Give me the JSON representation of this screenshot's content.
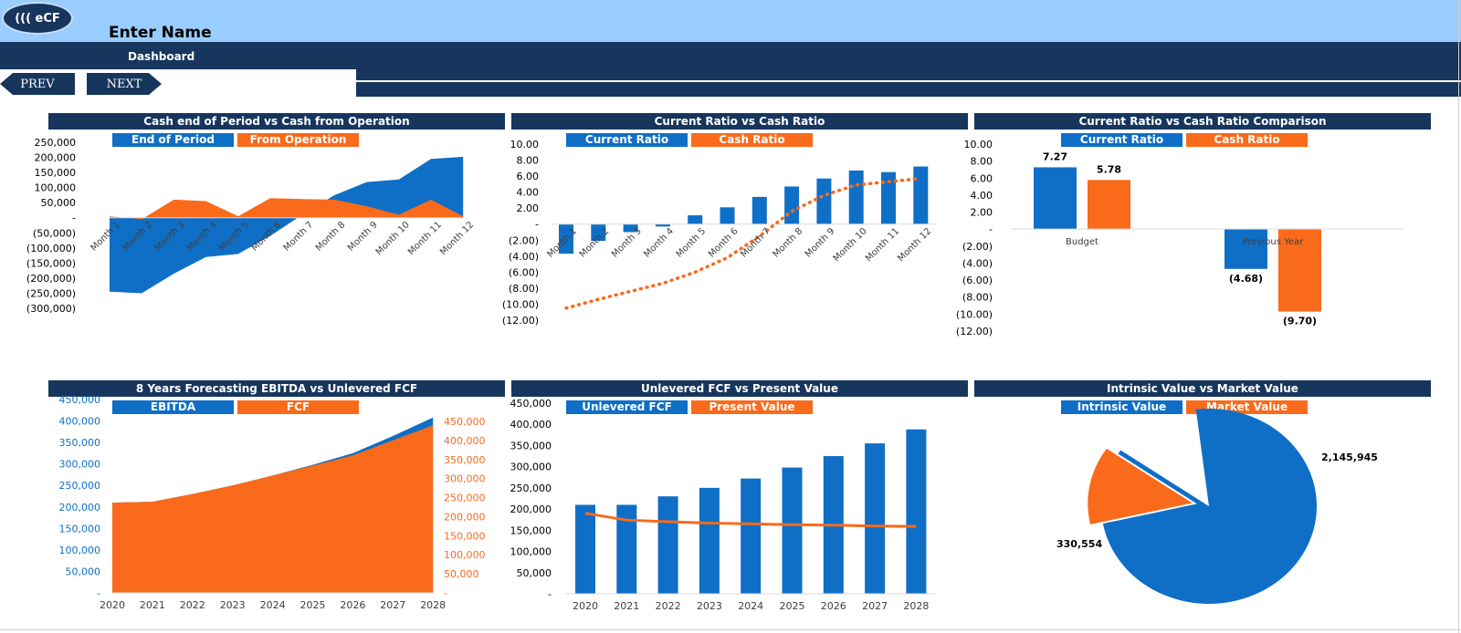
{
  "header": {
    "logo": "((( eCF",
    "title": "Enter Name"
  },
  "nav": {
    "tab": "Dashboard",
    "prev": "PREV",
    "next": "NEXT"
  },
  "colors": {
    "blue": "#0f6fc6",
    "orange": "#f96a1b",
    "navy": "#17365d"
  },
  "chart_data": [
    {
      "type": "area",
      "title": "Cash end of Period vs Cash from Operation",
      "legend": [
        "End of Period",
        "From Operation"
      ],
      "categories": [
        "Month 1",
        "Month 2",
        "Month 3",
        "Month 4",
        "Month 5",
        "Month 6",
        "Month 7",
        "Month 8",
        "Month 9",
        "Month 10",
        "Month 11",
        "Month 12"
      ],
      "yticks": [
        "250,000",
        "200,000",
        "150,000",
        "100,000",
        "50,000",
        "-",
        "(50,000)",
        "(100,000)",
        "(150,000)",
        "(200,000)",
        "(250,000)",
        "(300,000)"
      ],
      "ylim": [
        -300000,
        250000
      ],
      "series": [
        {
          "name": "End of Period",
          "values": [
            -245000,
            -250000,
            -185000,
            -130000,
            -120000,
            -60000,
            10000,
            75000,
            118000,
            127000,
            195000,
            202000
          ]
        },
        {
          "name": "From Operation",
          "values": [
            5000,
            -5000,
            60000,
            55000,
            5000,
            65000,
            62000,
            60000,
            38000,
            10000,
            60000,
            5000
          ]
        }
      ]
    },
    {
      "type": "bar",
      "title": "Current Ratio vs Cash Ratio",
      "legend": [
        "Current Ratio",
        "Cash Ratio"
      ],
      "categories": [
        "Month 1",
        "Month 2",
        "Month 3",
        "Month 4",
        "Month 5",
        "Month 6",
        "Month 7",
        "Month 8",
        "Month 9",
        "Month 10",
        "Month 11",
        "Month 12"
      ],
      "yticks": [
        "10.00",
        "8.00",
        "6.00",
        "4.00",
        "2.00",
        "-",
        "(2.00)",
        "(4.00)",
        "(6.00)",
        "(8.00)",
        "(10.00)",
        "(12.00)"
      ],
      "ylim": [
        -12,
        10
      ],
      "series": [
        {
          "name": "Current Ratio",
          "values": [
            -3.7,
            -2.1,
            -1.0,
            -0.3,
            1.1,
            2.1,
            3.4,
            4.7,
            5.7,
            6.7,
            6.5,
            7.2
          ]
        },
        {
          "name": "Cash Ratio",
          "values": [
            -10.5,
            -9.4,
            -8.4,
            -7.4,
            -6.0,
            -4.2,
            -1.5,
            1.6,
            3.6,
            4.9,
            5.3,
            5.7
          ]
        }
      ]
    },
    {
      "type": "bar",
      "title": "Current Ratio vs Cash Ratio Comparison",
      "legend": [
        "Current Ratio",
        "Cash Ratio"
      ],
      "categories": [
        "Budget",
        "Previous Year"
      ],
      "yticks": [
        "10.00",
        "8.00",
        "6.00",
        "4.00",
        "2.00",
        "-",
        "(2.00)",
        "(4.00)",
        "(6.00)",
        "(8.00)",
        "(10.00)",
        "(12.00)"
      ],
      "ylim": [
        -12,
        10
      ],
      "series": [
        {
          "name": "Current Ratio",
          "values": [
            7.27,
            -4.68
          ],
          "labels": [
            "7.27",
            "(4.68)"
          ]
        },
        {
          "name": "Cash Ratio",
          "values": [
            5.78,
            -9.7
          ],
          "labels": [
            "5.78",
            "(9.70)"
          ]
        }
      ]
    },
    {
      "type": "area",
      "title": "8 Years Forecasting EBITDA vs Unlevered FCF",
      "legend": [
        "EBITDA",
        "FCF"
      ],
      "categories": [
        "2020",
        "2021",
        "2022",
        "2023",
        "2024",
        "2025",
        "2026",
        "2027",
        "2028"
      ],
      "yticks": [
        "450,000",
        "400,000",
        "350,000",
        "300,000",
        "250,000",
        "200,000",
        "150,000",
        "100,000",
        "50,000",
        "-"
      ],
      "ylim": [
        0,
        450000
      ],
      "series": [
        {
          "name": "EBITDA",
          "values": [
            210000,
            212000,
            230000,
            250000,
            273000,
            298000,
            325000,
            365000,
            408000
          ]
        },
        {
          "name": "FCF",
          "values": [
            210000,
            212000,
            230000,
            250000,
            273000,
            296000,
            320000,
            355000,
            390000
          ]
        }
      ]
    },
    {
      "type": "bar",
      "title": "Unlevered FCF vs Present Value",
      "legend": [
        "Unlevered FCF",
        "Present Value"
      ],
      "categories": [
        "2020",
        "2021",
        "2022",
        "2023",
        "2024",
        "2025",
        "2026",
        "2027",
        "2028"
      ],
      "yticks": [
        "450,000",
        "400,000",
        "350,000",
        "300,000",
        "250,000",
        "200,000",
        "150,000",
        "100,000",
        "50,000",
        "-"
      ],
      "ylim": [
        0,
        450000
      ],
      "series": [
        {
          "name": "Unlevered FCF",
          "values": [
            210000,
            210000,
            230000,
            250000,
            272000,
            298000,
            325000,
            355000,
            388000
          ]
        },
        {
          "name": "Present Value",
          "values": [
            190000,
            174000,
            170000,
            167000,
            165000,
            163000,
            162000,
            160000,
            159000
          ]
        }
      ]
    },
    {
      "type": "pie",
      "title": "Intrinsic Value vs Market Value",
      "legend": [
        "Intrinsic Value",
        "Market Value"
      ],
      "slices": [
        {
          "name": "Intrinsic Value",
          "value": 2145945,
          "label": "2,145,945"
        },
        {
          "name": "Market Value",
          "value": 330554,
          "label": "330,554"
        }
      ]
    }
  ]
}
